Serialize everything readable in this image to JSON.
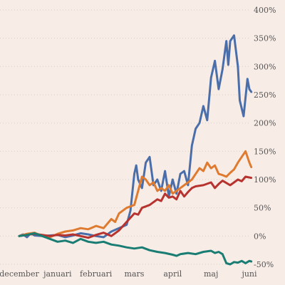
{
  "chart_data": {
    "type": "line",
    "x_axis": {
      "ticks": [
        {
          "x": 0,
          "label": "december"
        },
        {
          "x": 1,
          "label": "januari"
        },
        {
          "x": 2,
          "label": "februari"
        },
        {
          "x": 3,
          "label": "mars"
        },
        {
          "x": 4,
          "label": "april"
        },
        {
          "x": 5,
          "label": "maj"
        },
        {
          "x": 6,
          "label": "juni"
        }
      ],
      "range": [
        0,
        6
      ]
    },
    "y_axis": {
      "ticks": [
        {
          "value": -50,
          "label": "-50%"
        },
        {
          "value": 0,
          "label": "0%"
        },
        {
          "value": 50,
          "label": "50%"
        },
        {
          "value": 100,
          "label": "100%"
        },
        {
          "value": 150,
          "label": "150%"
        },
        {
          "value": 200,
          "label": "200%"
        },
        {
          "value": 250,
          "label": "250%"
        },
        {
          "value": 300,
          "label": "300%"
        },
        {
          "value": 350,
          "label": "350%"
        },
        {
          "value": 400,
          "label": "400%"
        }
      ],
      "range": [
        -50,
        400
      ],
      "position": "right"
    },
    "grid": "horizontal dotted",
    "series": [
      {
        "color": "#4a6ea9",
        "points": [
          [
            0,
            0
          ],
          [
            0.1,
            3
          ],
          [
            0.2,
            -2
          ],
          [
            0.3,
            5
          ],
          [
            0.4,
            1
          ],
          [
            0.6,
            0
          ],
          [
            0.8,
            1
          ],
          [
            1.0,
            2
          ],
          [
            1.2,
            -2
          ],
          [
            1.4,
            1
          ],
          [
            1.6,
            5
          ],
          [
            1.8,
            3
          ],
          [
            2.0,
            0
          ],
          [
            2.2,
            -2
          ],
          [
            2.4,
            8
          ],
          [
            2.6,
            14
          ],
          [
            2.8,
            20
          ],
          [
            2.9,
            45
          ],
          [
            3.0,
            110
          ],
          [
            3.05,
            125
          ],
          [
            3.1,
            100
          ],
          [
            3.2,
            85
          ],
          [
            3.3,
            130
          ],
          [
            3.4,
            140
          ],
          [
            3.5,
            90
          ],
          [
            3.6,
            100
          ],
          [
            3.7,
            80
          ],
          [
            3.8,
            115
          ],
          [
            3.9,
            70
          ],
          [
            4.0,
            100
          ],
          [
            4.1,
            75
          ],
          [
            4.2,
            110
          ],
          [
            4.3,
            115
          ],
          [
            4.4,
            90
          ],
          [
            4.5,
            160
          ],
          [
            4.6,
            190
          ],
          [
            4.7,
            200
          ],
          [
            4.8,
            230
          ],
          [
            4.9,
            205
          ],
          [
            5.0,
            280
          ],
          [
            5.1,
            310
          ],
          [
            5.2,
            260
          ],
          [
            5.3,
            295
          ],
          [
            5.4,
            345
          ],
          [
            5.45,
            303
          ],
          [
            5.5,
            345
          ],
          [
            5.6,
            355
          ],
          [
            5.7,
            300
          ],
          [
            5.75,
            240
          ],
          [
            5.85,
            212
          ],
          [
            5.95,
            278
          ],
          [
            6.0,
            260
          ],
          [
            6.05,
            255
          ]
        ]
      },
      {
        "color": "#df7b30",
        "points": [
          [
            0,
            0
          ],
          [
            0.2,
            4
          ],
          [
            0.4,
            6
          ],
          [
            0.6,
            0
          ],
          [
            0.8,
            -2
          ],
          [
            1.0,
            4
          ],
          [
            1.2,
            8
          ],
          [
            1.4,
            10
          ],
          [
            1.6,
            14
          ],
          [
            1.8,
            12
          ],
          [
            2.0,
            18
          ],
          [
            2.2,
            14
          ],
          [
            2.4,
            30
          ],
          [
            2.5,
            25
          ],
          [
            2.6,
            40
          ],
          [
            2.8,
            50
          ],
          [
            3.0,
            55
          ],
          [
            3.1,
            80
          ],
          [
            3.2,
            105
          ],
          [
            3.3,
            100
          ],
          [
            3.4,
            90
          ],
          [
            3.5,
            95
          ],
          [
            3.6,
            80
          ],
          [
            3.7,
            85
          ],
          [
            3.8,
            80
          ],
          [
            3.9,
            90
          ],
          [
            4.0,
            75
          ],
          [
            4.2,
            85
          ],
          [
            4.4,
            95
          ],
          [
            4.5,
            100
          ],
          [
            4.6,
            110
          ],
          [
            4.7,
            120
          ],
          [
            4.8,
            115
          ],
          [
            4.9,
            130
          ],
          [
            5.0,
            120
          ],
          [
            5.1,
            125
          ],
          [
            5.2,
            110
          ],
          [
            5.3,
            108
          ],
          [
            5.4,
            105
          ],
          [
            5.5,
            112
          ],
          [
            5.6,
            118
          ],
          [
            5.7,
            130
          ],
          [
            5.8,
            140
          ],
          [
            5.9,
            150
          ],
          [
            6.0,
            130
          ],
          [
            6.05,
            122
          ]
        ]
      },
      {
        "color": "#b7332f",
        "points": [
          [
            0,
            0
          ],
          [
            0.2,
            2
          ],
          [
            0.4,
            4
          ],
          [
            0.6,
            2
          ],
          [
            0.8,
            0
          ],
          [
            1.0,
            2
          ],
          [
            1.2,
            1
          ],
          [
            1.4,
            3
          ],
          [
            1.6,
            0
          ],
          [
            1.8,
            -3
          ],
          [
            2.0,
            2
          ],
          [
            2.2,
            6
          ],
          [
            2.4,
            0
          ],
          [
            2.6,
            10
          ],
          [
            2.8,
            25
          ],
          [
            3.0,
            40
          ],
          [
            3.1,
            38
          ],
          [
            3.2,
            50
          ],
          [
            3.4,
            55
          ],
          [
            3.6,
            65
          ],
          [
            3.7,
            62
          ],
          [
            3.8,
            75
          ],
          [
            3.9,
            68
          ],
          [
            4.0,
            70
          ],
          [
            4.1,
            65
          ],
          [
            4.2,
            80
          ],
          [
            4.3,
            70
          ],
          [
            4.4,
            78
          ],
          [
            4.5,
            85
          ],
          [
            4.6,
            88
          ],
          [
            4.8,
            90
          ],
          [
            5.0,
            95
          ],
          [
            5.1,
            85
          ],
          [
            5.2,
            92
          ],
          [
            5.3,
            98
          ],
          [
            5.5,
            90
          ],
          [
            5.6,
            95
          ],
          [
            5.7,
            100
          ],
          [
            5.8,
            97
          ],
          [
            5.9,
            105
          ],
          [
            6.05,
            103
          ]
        ]
      },
      {
        "color": "#197d73",
        "points": [
          [
            0,
            0
          ],
          [
            0.2,
            2
          ],
          [
            0.4,
            5
          ],
          [
            0.6,
            0
          ],
          [
            0.8,
            -5
          ],
          [
            1.0,
            -10
          ],
          [
            1.2,
            -8
          ],
          [
            1.4,
            -12
          ],
          [
            1.6,
            -5
          ],
          [
            1.8,
            -10
          ],
          [
            2.0,
            -12
          ],
          [
            2.2,
            -10
          ],
          [
            2.4,
            -15
          ],
          [
            2.6,
            -17
          ],
          [
            2.8,
            -20
          ],
          [
            3.0,
            -22
          ],
          [
            3.2,
            -20
          ],
          [
            3.4,
            -25
          ],
          [
            3.6,
            -28
          ],
          [
            3.8,
            -30
          ],
          [
            4.0,
            -33
          ],
          [
            4.1,
            -35
          ],
          [
            4.2,
            -32
          ],
          [
            4.4,
            -30
          ],
          [
            4.6,
            -32
          ],
          [
            4.8,
            -28
          ],
          [
            5.0,
            -26
          ],
          [
            5.1,
            -30
          ],
          [
            5.2,
            -28
          ],
          [
            5.3,
            -32
          ],
          [
            5.4,
            -48
          ],
          [
            5.5,
            -50
          ],
          [
            5.6,
            -46
          ],
          [
            5.7,
            -47
          ],
          [
            5.8,
            -44
          ],
          [
            5.9,
            -48
          ],
          [
            6.0,
            -44
          ],
          [
            6.05,
            -45
          ]
        ]
      }
    ]
  }
}
